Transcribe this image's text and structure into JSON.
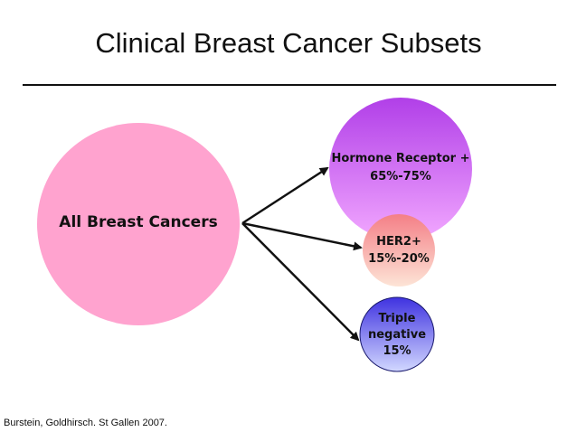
{
  "title": "Clinical Breast Cancer Subsets",
  "nodes": {
    "all": {
      "label": "All Breast Cancers",
      "color": "#ffa3cf"
    },
    "hormone": {
      "line1": "Hormone Receptor +",
      "line2": "65%-75%",
      "color_top": "#b13fe8",
      "color_bottom": "#f2a8ff"
    },
    "her2": {
      "line1": "HER2+",
      "line2": "15%-20%",
      "color_top": "#f47f86",
      "color_bottom": "#fde4d6"
    },
    "triple": {
      "line1": "Triple",
      "line2": "negative",
      "line3": "15%",
      "color_top": "#3f32e0",
      "color_bottom": "#d2d8ff"
    }
  },
  "citation": "Burstein, Goldhirsch. St Gallen 2007."
}
